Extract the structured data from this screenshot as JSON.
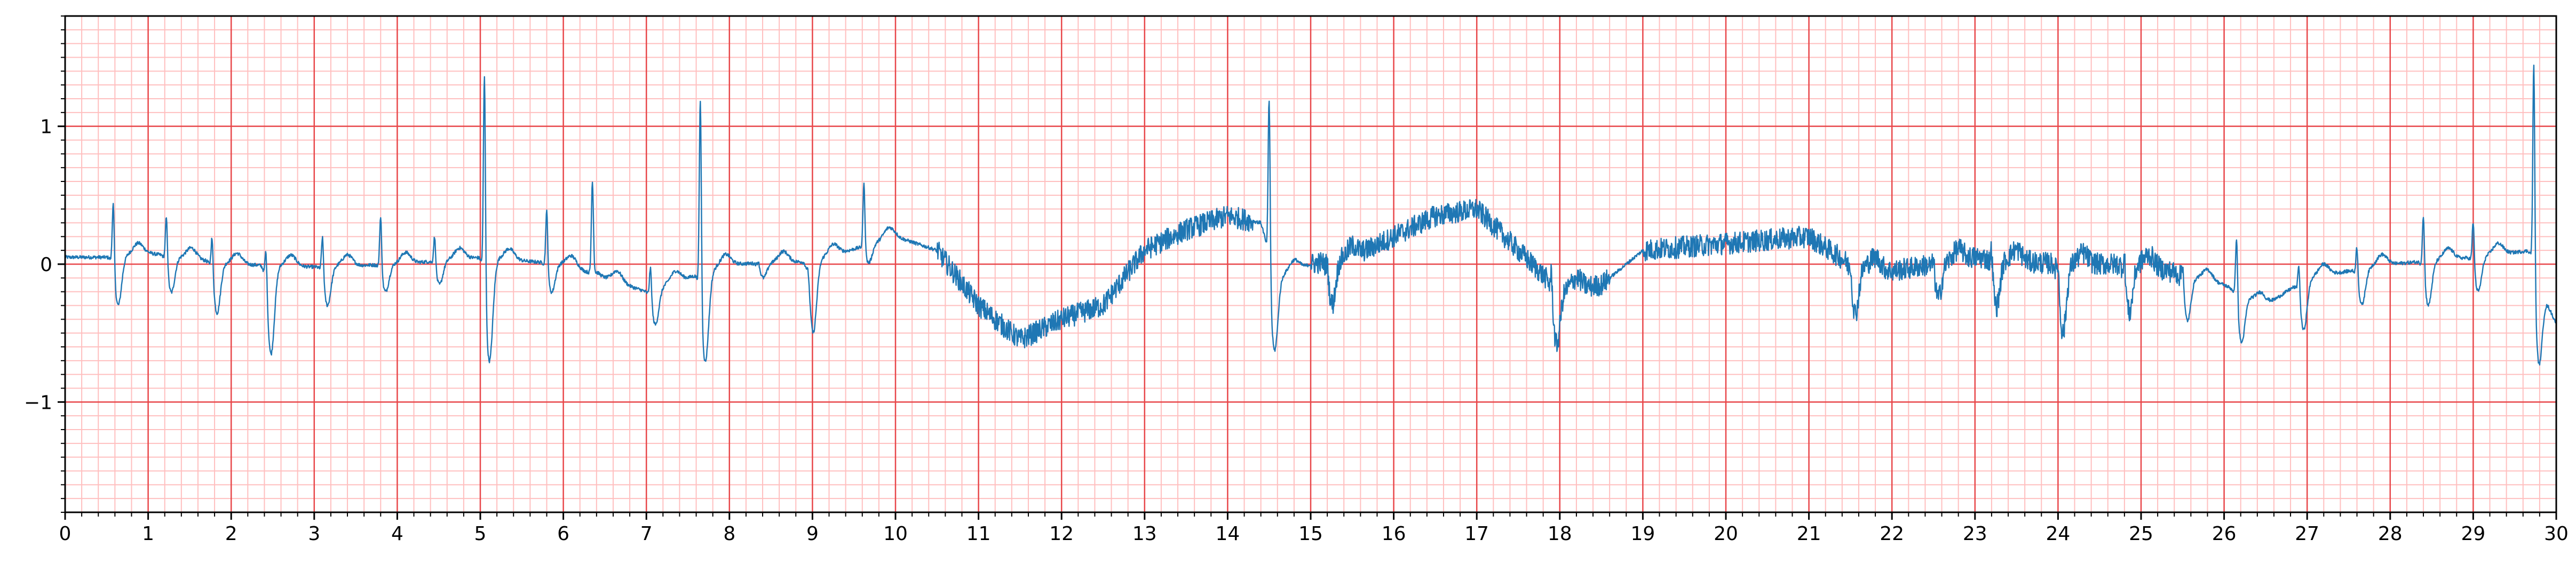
{
  "chart_data": {
    "type": "line",
    "title": "",
    "xlabel": "",
    "ylabel": "",
    "xlim": [
      0,
      30
    ],
    "ylim": [
      -1.8,
      1.8
    ],
    "x_ticks": [
      0,
      1,
      2,
      3,
      4,
      5,
      6,
      7,
      8,
      9,
      10,
      11,
      12,
      13,
      14,
      15,
      16,
      17,
      18,
      19,
      20,
      21,
      22,
      23,
      24,
      25,
      26,
      27,
      28,
      29,
      30
    ],
    "x_tick_labels": [
      "0",
      "1",
      "2",
      "3",
      "4",
      "5",
      "6",
      "7",
      "8",
      "9",
      "10",
      "11",
      "12",
      "13",
      "14",
      "15",
      "16",
      "17",
      "18",
      "19",
      "20",
      "21",
      "22",
      "23",
      "24",
      "25",
      "26",
      "27",
      "28",
      "29",
      "30"
    ],
    "y_ticks": [
      -1,
      0,
      1
    ],
    "y_tick_labels": [
      "−1",
      "0",
      "1"
    ],
    "x_minor_step": 0.2,
    "y_minor_step": 0.1,
    "grid": true,
    "colors": {
      "major_grid": "#e8474a",
      "minor_grid": "#ffbfbf",
      "series": "#1f77b4",
      "axes": "#000000"
    },
    "series": [
      {
        "color": "#1f77b4",
        "baseline_points": [
          [
            0,
            0.05
          ],
          [
            0.5,
            0.05
          ],
          [
            1,
            0.08
          ],
          [
            2,
            0.0
          ],
          [
            3,
            -0.02
          ],
          [
            4,
            0.0
          ],
          [
            5,
            0.05
          ],
          [
            6,
            0.0
          ],
          [
            7,
            -0.2
          ],
          [
            8,
            0.0
          ],
          [
            9,
            0.02
          ],
          [
            10,
            0.2
          ],
          [
            10.5,
            0.1
          ],
          [
            11,
            -0.3
          ],
          [
            11.5,
            -0.55
          ],
          [
            12,
            -0.4
          ],
          [
            12.5,
            -0.3
          ],
          [
            13,
            0.1
          ],
          [
            13.5,
            0.25
          ],
          [
            14,
            0.35
          ],
          [
            14.4,
            0.3
          ],
          [
            14.6,
            -0.1
          ],
          [
            15,
            0.0
          ],
          [
            15.5,
            0.05
          ],
          [
            16,
            0.2
          ],
          [
            16.5,
            0.35
          ],
          [
            17,
            0.4
          ],
          [
            17.5,
            0.1
          ],
          [
            18,
            -0.2
          ],
          [
            18.5,
            -0.15
          ],
          [
            19,
            0.1
          ],
          [
            20,
            0.15
          ],
          [
            21,
            0.2
          ],
          [
            21.5,
            0.0
          ],
          [
            22,
            -0.05
          ],
          [
            23,
            0.05
          ],
          [
            24,
            0.0
          ],
          [
            25,
            0.0
          ],
          [
            26,
            -0.15
          ],
          [
            26.5,
            -0.3
          ],
          [
            27,
            -0.1
          ],
          [
            28,
            0.0
          ],
          [
            29,
            0.05
          ],
          [
            29.7,
            0.1
          ],
          [
            30,
            -0.5
          ]
        ],
        "beats": [
          {
            "x": 0.58,
            "peak": 0.55,
            "trough": -0.3
          },
          {
            "x": 1.22,
            "peak": 0.42,
            "trough": -0.2
          },
          {
            "x": 1.77,
            "peak": 0.3,
            "trough": -0.35
          },
          {
            "x": 2.42,
            "peak": 0.28,
            "trough": -0.65
          },
          {
            "x": 3.1,
            "peak": 0.28,
            "trough": -0.3
          },
          {
            "x": 3.8,
            "peak": 0.4,
            "trough": -0.2
          },
          {
            "x": 4.45,
            "peak": 0.25,
            "trough": -0.15
          },
          {
            "x": 5.05,
            "peak": 1.6,
            "trough": -0.7
          },
          {
            "x": 5.8,
            "peak": 0.45,
            "trough": -0.2
          },
          {
            "x": 6.35,
            "peak": 0.6,
            "trough": -0.05
          },
          {
            "x": 7.05,
            "peak": 0.05,
            "trough": -0.45
          },
          {
            "x": 7.65,
            "peak": 1.4,
            "trough": -0.72
          },
          {
            "x": 8.35,
            "peak": 0.05,
            "trough": -0.1
          },
          {
            "x": 8.95,
            "peak": 0.1,
            "trough": -0.5
          },
          {
            "x": 9.62,
            "peak": 0.62,
            "trough": 0.0
          },
          {
            "x": 14.5,
            "peak": 1.38,
            "trough": -0.5
          },
          {
            "x": 15.2,
            "peak": 0.1,
            "trough": -0.3
          },
          {
            "x": 17.9,
            "peak": 0.05,
            "trough": -0.55
          },
          {
            "x": 21.5,
            "peak": 0.1,
            "trough": -0.35
          },
          {
            "x": 22.5,
            "peak": 0.1,
            "trough": -0.25
          },
          {
            "x": 23.2,
            "peak": 0.2,
            "trough": -0.3
          },
          {
            "x": 24.0,
            "peak": 0.15,
            "trough": -0.5
          },
          {
            "x": 24.8,
            "peak": 0.15,
            "trough": -0.35
          },
          {
            "x": 25.5,
            "peak": 0.12,
            "trough": -0.4
          },
          {
            "x": 26.15,
            "peak": 0.3,
            "trough": -0.55
          },
          {
            "x": 26.9,
            "peak": 0.1,
            "trough": -0.5
          },
          {
            "x": 27.6,
            "peak": 0.2,
            "trough": -0.3
          },
          {
            "x": 28.4,
            "peak": 0.45,
            "trough": -0.3
          },
          {
            "x": 29.0,
            "peak": 0.38,
            "trough": -0.2
          },
          {
            "x": 29.73,
            "peak": 1.65,
            "trough": -0.6
          }
        ],
        "noisy_ranges": [
          [
            10.5,
            14.3
          ],
          [
            15.0,
            18.6
          ],
          [
            19.0,
            21.8
          ],
          [
            21.8,
            25.5
          ]
        ],
        "noise_amplitude": 0.08
      }
    ]
  }
}
